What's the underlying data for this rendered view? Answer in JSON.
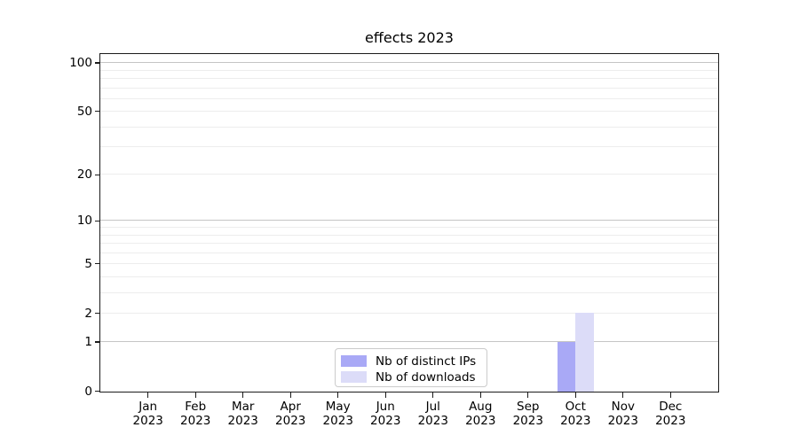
{
  "chart_data": {
    "type": "bar",
    "title": "effects 2023",
    "xlabel": "",
    "ylabel": "",
    "yscale": "log1p",
    "ylim": [
      0,
      113
    ],
    "yticks": [
      0,
      1,
      2,
      5,
      10,
      20,
      50,
      100
    ],
    "grid": "horizontal",
    "gridlines": {
      "major": [
        1,
        10,
        100
      ],
      "minor": [
        2,
        3,
        4,
        5,
        6,
        7,
        8,
        9,
        20,
        30,
        40,
        50,
        60,
        70,
        80,
        90
      ]
    },
    "categories": [
      {
        "month": "Jan",
        "year": "2023"
      },
      {
        "month": "Feb",
        "year": "2023"
      },
      {
        "month": "Mar",
        "year": "2023"
      },
      {
        "month": "Apr",
        "year": "2023"
      },
      {
        "month": "May",
        "year": "2023"
      },
      {
        "month": "Jun",
        "year": "2023"
      },
      {
        "month": "Jul",
        "year": "2023"
      },
      {
        "month": "Aug",
        "year": "2023"
      },
      {
        "month": "Sep",
        "year": "2023"
      },
      {
        "month": "Oct",
        "year": "2023"
      },
      {
        "month": "Nov",
        "year": "2023"
      },
      {
        "month": "Dec",
        "year": "2023"
      }
    ],
    "series": [
      {
        "name": "Nb of distinct IPs",
        "color": "#a9a9f6",
        "values": [
          0,
          0,
          0,
          0,
          0,
          0,
          0,
          0,
          0,
          1,
          0,
          0
        ]
      },
      {
        "name": "Nb of downloads",
        "color": "#dcdcf8",
        "values": [
          0,
          0,
          0,
          0,
          0,
          0,
          0,
          0,
          0,
          2,
          0,
          0
        ]
      }
    ],
    "legend_position": "lower center",
    "colors": {
      "grid_major": "#c5c5c5",
      "grid_minor": "#ededed",
      "spine": "#1b1b1b",
      "text": "#000000",
      "background": "#ffffff"
    }
  }
}
